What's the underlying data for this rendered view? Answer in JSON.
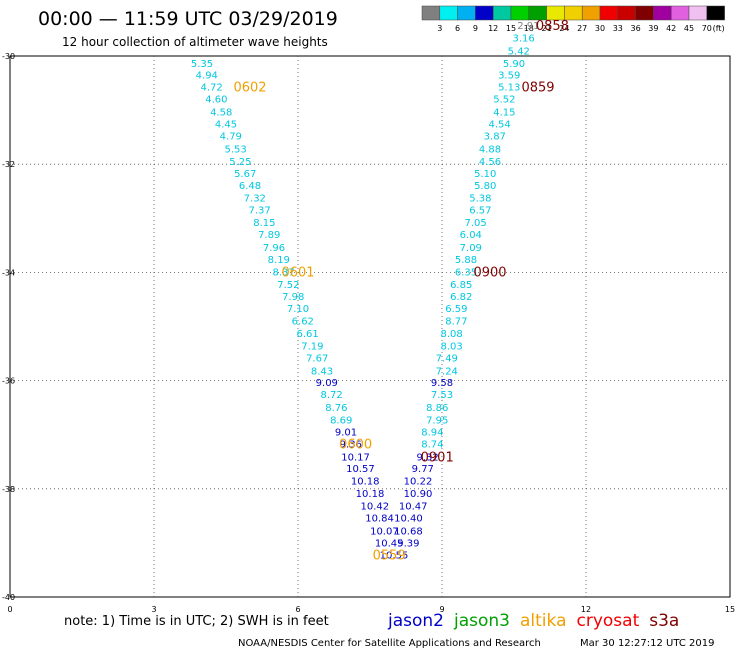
{
  "title": "00:00 — 11:59 UTC 03/29/2019",
  "subtitle": "12 hour collection of altimeter wave heights",
  "colorbar": {
    "labels": [
      "3",
      "6",
      "9",
      "12",
      "15",
      "18",
      "21",
      "24",
      "27",
      "30",
      "33",
      "36",
      "39",
      "42",
      "45",
      "70"
    ],
    "unit": "(ft)",
    "colors": [
      "#808080",
      "#00f0f0",
      "#00b0f0",
      "#0000c8",
      "#00c8a0",
      "#00d000",
      "#00a000",
      "#e8e800",
      "#f0d000",
      "#f0a000",
      "#f00000",
      "#c80000",
      "#800000",
      "#a000a0",
      "#e060e0",
      "#f0c0f0",
      "#000000"
    ]
  },
  "axes": {
    "x_ticks": [
      "0",
      "3",
      "6",
      "9",
      "12",
      "15"
    ],
    "y_ticks": [
      "-30",
      "-32",
      "-34",
      "-36",
      "-38",
      "-40"
    ]
  },
  "chart_data": {
    "type": "scatter",
    "xlim": [
      0,
      15
    ],
    "ylim": [
      -40,
      -30
    ],
    "labels": [
      {
        "text": "5.35",
        "x": 4.0,
        "y": -30.13,
        "color": "#00c8e0"
      },
      {
        "text": "4.94",
        "x": 4.1,
        "y": -30.34,
        "color": "#00c8e0"
      },
      {
        "text": "4.72",
        "x": 4.2,
        "y": -30.56,
        "color": "#00c8e0"
      },
      {
        "text": "4.60",
        "x": 4.3,
        "y": -30.79,
        "color": "#00c8e0"
      },
      {
        "text": "4.58",
        "x": 4.4,
        "y": -31.03,
        "color": "#00c8e0"
      },
      {
        "text": "4.45",
        "x": 4.5,
        "y": -31.25,
        "color": "#00c8e0"
      },
      {
        "text": "4.79",
        "x": 4.6,
        "y": -31.47,
        "color": "#00c8e0"
      },
      {
        "text": "5.53",
        "x": 4.7,
        "y": -31.71,
        "color": "#00c8e0"
      },
      {
        "text": "5.25",
        "x": 4.8,
        "y": -31.94,
        "color": "#00c8e0"
      },
      {
        "text": "5.67",
        "x": 4.9,
        "y": -32.16,
        "color": "#00c8e0"
      },
      {
        "text": "6.48",
        "x": 5.0,
        "y": -32.38,
        "color": "#00c8e0"
      },
      {
        "text": "7.32",
        "x": 5.1,
        "y": -32.62,
        "color": "#00c8e0"
      },
      {
        "text": "7.37",
        "x": 5.2,
        "y": -32.84,
        "color": "#00c8e0"
      },
      {
        "text": "8.15",
        "x": 5.3,
        "y": -33.07,
        "color": "#00c8e0"
      },
      {
        "text": "7.89",
        "x": 5.4,
        "y": -33.29,
        "color": "#00c8e0"
      },
      {
        "text": "7.96",
        "x": 5.5,
        "y": -33.53,
        "color": "#00c8e0"
      },
      {
        "text": "8.19",
        "x": 5.6,
        "y": -33.75,
        "color": "#00c8e0"
      },
      {
        "text": "8.37",
        "x": 5.7,
        "y": -33.98,
        "color": "#00c8e0"
      },
      {
        "text": "7.52",
        "x": 5.8,
        "y": -34.21,
        "color": "#00c8e0"
      },
      {
        "text": "7.98",
        "x": 5.9,
        "y": -34.44,
        "color": "#00c8e0"
      },
      {
        "text": "7.10",
        "x": 6.0,
        "y": -34.66,
        "color": "#00c8e0"
      },
      {
        "text": "6.62",
        "x": 6.1,
        "y": -34.89,
        "color": "#00c8e0"
      },
      {
        "text": "6.61",
        "x": 6.2,
        "y": -35.12,
        "color": "#00c8e0"
      },
      {
        "text": "7.19",
        "x": 6.3,
        "y": -35.35,
        "color": "#00c8e0"
      },
      {
        "text": "7.67",
        "x": 6.4,
        "y": -35.57,
        "color": "#00c8e0"
      },
      {
        "text": "8.43",
        "x": 6.5,
        "y": -35.81,
        "color": "#00c8e0"
      },
      {
        "text": "9.09",
        "x": 6.6,
        "y": -36.03,
        "color": "#0000c8"
      },
      {
        "text": "8.72",
        "x": 6.7,
        "y": -36.25,
        "color": "#00c8e0"
      },
      {
        "text": "8.76",
        "x": 6.8,
        "y": -36.49,
        "color": "#00c8e0"
      },
      {
        "text": "8.69",
        "x": 6.9,
        "y": -36.72,
        "color": "#00c8e0"
      },
      {
        "text": "9.01",
        "x": 7.0,
        "y": -36.94,
        "color": "#0000c8"
      },
      {
        "text": "9.36",
        "x": 7.1,
        "y": -37.16,
        "color": "#0000c8"
      },
      {
        "text": "10.17",
        "x": 7.2,
        "y": -37.4,
        "color": "#0000c8"
      },
      {
        "text": "10.57",
        "x": 7.3,
        "y": -37.62,
        "color": "#0000c8"
      },
      {
        "text": "10.18",
        "x": 7.4,
        "y": -37.85,
        "color": "#0000c8"
      },
      {
        "text": "10.18",
        "x": 7.5,
        "y": -38.08,
        "color": "#0000c8"
      },
      {
        "text": "10.42",
        "x": 7.6,
        "y": -38.31,
        "color": "#0000c8"
      },
      {
        "text": "10.84",
        "x": 7.7,
        "y": -38.53,
        "color": "#0000c8"
      },
      {
        "text": "10.07",
        "x": 7.8,
        "y": -38.77,
        "color": "#0000c8"
      },
      {
        "text": "10.45",
        "x": 7.9,
        "y": -38.99,
        "color": "#0000c8"
      },
      {
        "text": "10.55",
        "x": 8.0,
        "y": -39.21,
        "color": "#0000c8"
      },
      {
        "text": "9.39",
        "x": 8.3,
        "y": -38.99,
        "color": "#0000c8"
      },
      {
        "text": "10.68",
        "x": 8.3,
        "y": -38.77,
        "color": "#0000c8"
      },
      {
        "text": "10.40",
        "x": 8.3,
        "y": -38.53,
        "color": "#0000c8"
      },
      {
        "text": "10.47",
        "x": 8.4,
        "y": -38.31,
        "color": "#0000c8"
      },
      {
        "text": "10.90",
        "x": 8.5,
        "y": -38.08,
        "color": "#0000c8"
      },
      {
        "text": "10.22",
        "x": 8.5,
        "y": -37.85,
        "color": "#0000c8"
      },
      {
        "text": "9.77",
        "x": 8.6,
        "y": -37.62,
        "color": "#0000c8"
      },
      {
        "text": "9.32",
        "x": 8.7,
        "y": -37.4,
        "color": "#0000c8"
      },
      {
        "text": "8.74",
        "x": 8.8,
        "y": -37.16,
        "color": "#00c8e0"
      },
      {
        "text": "8.94",
        "x": 8.8,
        "y": -36.94,
        "color": "#00c8e0"
      },
      {
        "text": "7.95",
        "x": 8.9,
        "y": -36.72,
        "color": "#00c8e0"
      },
      {
        "text": "8.86",
        "x": 8.9,
        "y": -36.49,
        "color": "#00c8e0"
      },
      {
        "text": "7.53",
        "x": 9.0,
        "y": -36.25,
        "color": "#00c8e0"
      },
      {
        "text": "9.58",
        "x": 9.0,
        "y": -36.03,
        "color": "#0000c8"
      },
      {
        "text": "7.24",
        "x": 9.1,
        "y": -35.81,
        "color": "#00c8e0"
      },
      {
        "text": "7.49",
        "x": 9.1,
        "y": -35.57,
        "color": "#00c8e0"
      },
      {
        "text": "8.03",
        "x": 9.2,
        "y": -35.35,
        "color": "#00c8e0"
      },
      {
        "text": "8.08",
        "x": 9.2,
        "y": -35.12,
        "color": "#00c8e0"
      },
      {
        "text": "8.77",
        "x": 9.3,
        "y": -34.89,
        "color": "#00c8e0"
      },
      {
        "text": "6.59",
        "x": 9.3,
        "y": -34.66,
        "color": "#00c8e0"
      },
      {
        "text": "6.82",
        "x": 9.4,
        "y": -34.44,
        "color": "#00c8e0"
      },
      {
        "text": "6.85",
        "x": 9.4,
        "y": -34.21,
        "color": "#00c8e0"
      },
      {
        "text": "6.35",
        "x": 9.5,
        "y": -33.98,
        "color": "#00c8e0"
      },
      {
        "text": "5.88",
        "x": 9.5,
        "y": -33.75,
        "color": "#00c8e0"
      },
      {
        "text": "7.09",
        "x": 9.6,
        "y": -33.53,
        "color": "#00c8e0"
      },
      {
        "text": "6.04",
        "x": 9.6,
        "y": -33.29,
        "color": "#00c8e0"
      },
      {
        "text": "7.05",
        "x": 9.7,
        "y": -33.07,
        "color": "#00c8e0"
      },
      {
        "text": "6.57",
        "x": 9.8,
        "y": -32.84,
        "color": "#00c8e0"
      },
      {
        "text": "5.38",
        "x": 9.8,
        "y": -32.62,
        "color": "#00c8e0"
      },
      {
        "text": "5.80",
        "x": 9.9,
        "y": -32.38,
        "color": "#00c8e0"
      },
      {
        "text": "5.10",
        "x": 9.9,
        "y": -32.16,
        "color": "#00c8e0"
      },
      {
        "text": "4.56",
        "x": 10.0,
        "y": -31.94,
        "color": "#00c8e0"
      },
      {
        "text": "4.88",
        "x": 10.0,
        "y": -31.71,
        "color": "#00c8e0"
      },
      {
        "text": "3.87",
        "x": 10.1,
        "y": -31.47,
        "color": "#00c8e0"
      },
      {
        "text": "4.54",
        "x": 10.2,
        "y": -31.25,
        "color": "#00c8e0"
      },
      {
        "text": "4.15",
        "x": 10.3,
        "y": -31.03,
        "color": "#00c8e0"
      },
      {
        "text": "5.52",
        "x": 10.3,
        "y": -30.79,
        "color": "#00c8e0"
      },
      {
        "text": "5.13",
        "x": 10.4,
        "y": -30.56,
        "color": "#00c8e0"
      },
      {
        "text": "3.59",
        "x": 10.4,
        "y": -30.34,
        "color": "#00c8e0"
      },
      {
        "text": "5.90",
        "x": 10.5,
        "y": -30.13,
        "color": "#00c8e0"
      },
      {
        "text": "5.42",
        "x": 10.6,
        "y": -29.9,
        "color": "#00c8e0"
      },
      {
        "text": "3.16",
        "x": 10.7,
        "y": -29.66,
        "color": "#00c8e0"
      },
      {
        "text": "2.91",
        "x": 10.8,
        "y": -29.43,
        "color": "#808080"
      }
    ],
    "time_labels": [
      {
        "text": "0602",
        "x": 5.0,
        "y": -30.56,
        "color": "#f0a000"
      },
      {
        "text": "0601",
        "x": 6.0,
        "y": -33.98,
        "color": "#f0a000"
      },
      {
        "text": "0600",
        "x": 7.2,
        "y": -37.16,
        "color": "#f0a000"
      },
      {
        "text": "0559",
        "x": 7.9,
        "y": -39.21,
        "color": "#f0a000"
      },
      {
        "text": "0858",
        "x": 11.3,
        "y": -29.43,
        "color": "#800000"
      },
      {
        "text": "0859",
        "x": 11.0,
        "y": -30.56,
        "color": "#800000"
      },
      {
        "text": "0900",
        "x": 10.0,
        "y": -33.98,
        "color": "#800000"
      },
      {
        "text": "0901",
        "x": 8.9,
        "y": -37.4,
        "color": "#800000"
      }
    ]
  },
  "note": "note: 1) Time is in UTC; 2) SWH is in feet",
  "legend": [
    {
      "label": "jason2",
      "color": "#0000c8"
    },
    {
      "label": "jason3",
      "color": "#00a000"
    },
    {
      "label": "altika",
      "color": "#f0a000"
    },
    {
      "label": "cryosat",
      "color": "#f00000"
    },
    {
      "label": "s3a",
      "color": "#800000"
    }
  ],
  "footer_left": "NOAA/NESDIS Center for Satellite Applications and Research",
  "footer_right": "Mar 30 12:27:12 UTC 2019"
}
